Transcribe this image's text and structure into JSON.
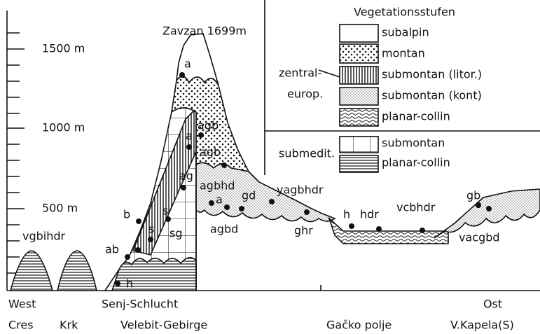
{
  "axis": {
    "ticks": [
      "1500 m",
      "1000 m",
      "500 m"
    ]
  },
  "peak_label": "Zavzan 1699m",
  "legend": {
    "title": "Vegetationsstufen",
    "groups": [
      {
        "label": [
          "zentral-",
          "europ."
        ],
        "items": [
          "subalpin",
          "montan",
          "submontan (litor.)",
          "submontan (kont)",
          "planar-collin"
        ]
      },
      {
        "label": [
          "submedit."
        ],
        "items": [
          "submontan",
          "planar-collin"
        ]
      }
    ]
  },
  "sites": [
    "a",
    "agb",
    "a",
    "agb",
    "ag",
    "agbhd",
    "a",
    "gd",
    "agbd",
    "yagbhdr",
    "ghr",
    "h",
    "hdr",
    "vcbhdr",
    "gb",
    "vacgbd",
    "b",
    "ab",
    "h",
    "s",
    "s",
    "sg",
    "vgbihdr"
  ],
  "directions": [
    "West",
    "Ost"
  ],
  "places": [
    "Cres",
    "Krk",
    "Senj-Schlucht",
    "Velebit-Gebirge",
    "Gačko polje",
    "V.Kapela(S)"
  ]
}
